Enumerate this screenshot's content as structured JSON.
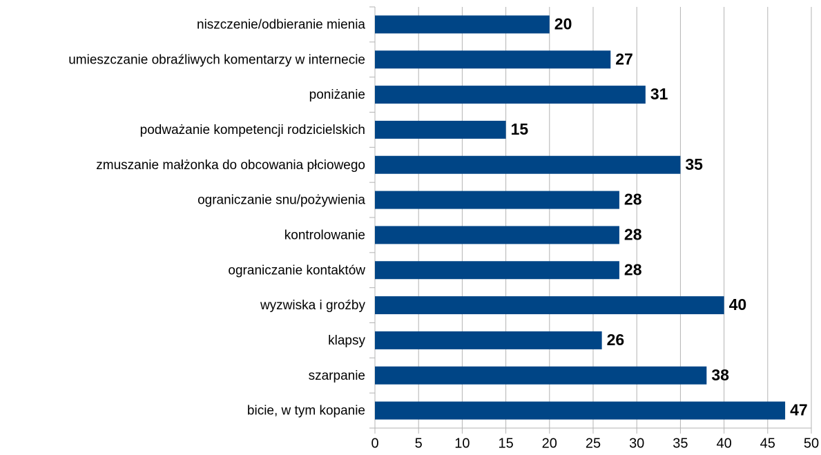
{
  "chart_data": {
    "type": "bar",
    "orientation": "horizontal",
    "categories": [
      "niszczenie/odbieranie mienia",
      "umieszczanie obraźliwych komentarzy w internecie",
      "poniżanie",
      "podważanie kompetencji rodzicielskich",
      "zmuszanie małżonka do obcowania płciowego",
      "ograniczanie snu/pożywienia",
      "kontrolowanie",
      "ograniczanie kontaktów",
      "wyzwiska i groźby",
      "klapsy",
      "szarpanie",
      "bicie, w tym kopanie"
    ],
    "values": [
      20,
      27,
      31,
      15,
      35,
      28,
      28,
      28,
      40,
      26,
      38,
      47
    ],
    "color": "#004586",
    "xlim": [
      0,
      50
    ],
    "xticks": [
      0,
      5,
      10,
      15,
      20,
      25,
      30,
      35,
      40,
      45,
      50
    ],
    "grid": true
  }
}
